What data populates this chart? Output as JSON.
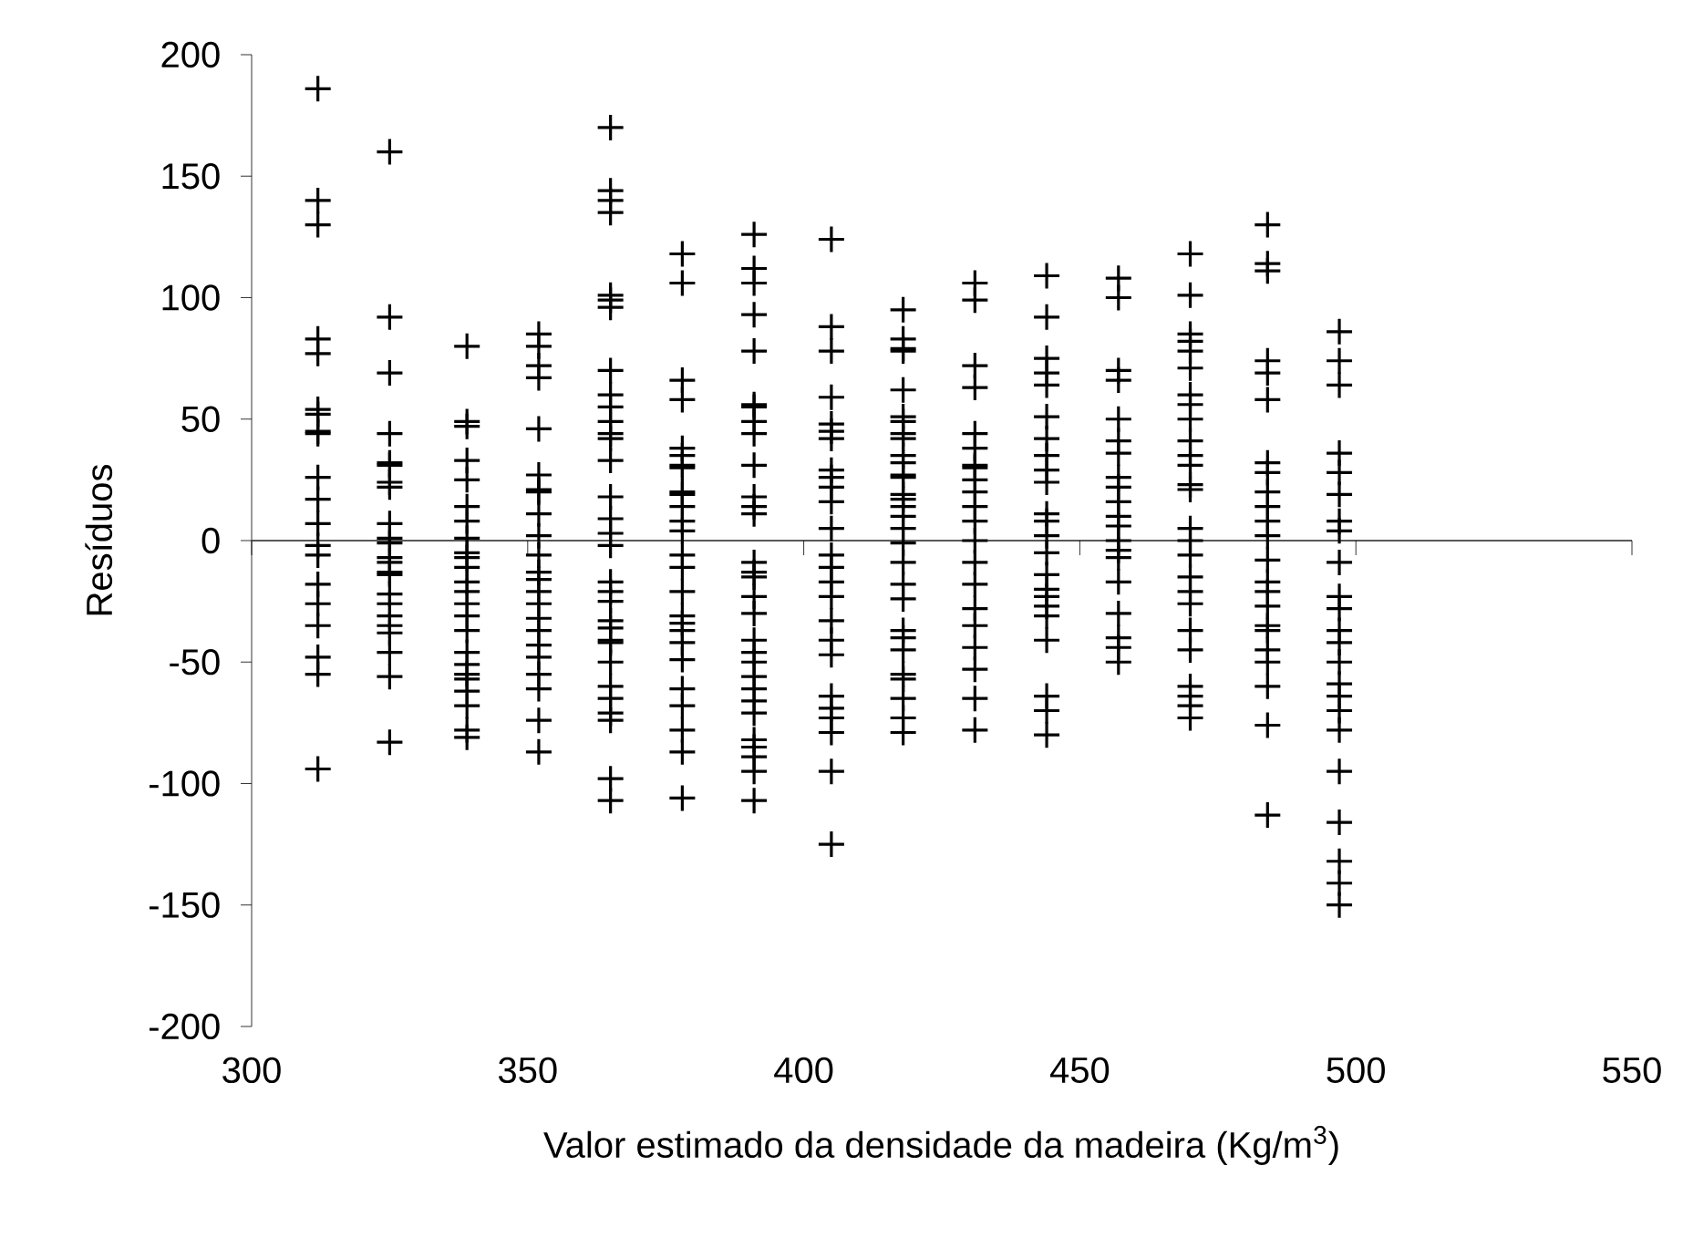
{
  "chart_data": {
    "type": "scatter",
    "xlabel": "Valor estimado da densidade da madeira (Kg/m$^{3}$)",
    "ylabel": "Resíduos",
    "xlim": [
      300,
      550
    ],
    "ylim": [
      -200,
      200
    ],
    "xticks": [
      300,
      350,
      400,
      450,
      500,
      550
    ],
    "yticks": [
      -200,
      -150,
      -100,
      -50,
      0,
      50,
      100,
      150,
      200
    ],
    "marker": "cross",
    "series": [
      {
        "color": "#000000",
        "x": [
          312,
          312,
          312,
          312,
          312,
          312,
          312,
          312,
          312,
          312,
          312,
          312,
          312,
          312,
          312,
          312,
          312,
          312,
          312,
          312,
          325,
          325,
          325,
          325,
          325,
          325,
          325,
          325,
          325,
          325,
          325,
          325,
          325,
          325,
          325,
          325,
          325,
          325,
          325,
          325,
          325,
          325,
          325,
          339,
          339,
          339,
          339,
          339,
          339,
          339,
          339,
          339,
          339,
          339,
          339,
          339,
          339,
          339,
          339,
          339,
          339,
          339,
          339,
          339,
          339,
          339,
          339,
          352,
          352,
          352,
          352,
          352,
          352,
          352,
          352,
          352,
          352,
          352,
          352,
          352,
          352,
          352,
          352,
          352,
          352,
          352,
          352,
          352,
          352,
          352,
          365,
          365,
          365,
          365,
          365,
          365,
          365,
          365,
          365,
          365,
          365,
          365,
          365,
          365,
          365,
          365,
          365,
          365,
          365,
          365,
          365,
          365,
          365,
          365,
          365,
          365,
          365,
          365,
          365,
          365,
          365,
          365,
          378,
          378,
          378,
          378,
          378,
          378,
          378,
          378,
          378,
          378,
          378,
          378,
          378,
          378,
          378,
          378,
          378,
          378,
          378,
          378,
          378,
          378,
          378,
          378,
          378,
          378,
          391,
          391,
          391,
          391,
          391,
          391,
          391,
          391,
          391,
          391,
          391,
          391,
          391,
          391,
          391,
          391,
          391,
          391,
          391,
          391,
          391,
          391,
          391,
          391,
          391,
          391,
          391,
          391,
          391,
          391,
          405,
          405,
          405,
          405,
          405,
          405,
          405,
          405,
          405,
          405,
          405,
          405,
          405,
          405,
          405,
          405,
          405,
          405,
          405,
          405,
          405,
          405,
          405,
          405,
          405,
          418,
          418,
          418,
          418,
          418,
          418,
          418,
          418,
          418,
          418,
          418,
          418,
          418,
          418,
          418,
          418,
          418,
          418,
          418,
          418,
          418,
          418,
          418,
          418,
          418,
          418,
          418,
          418,
          418,
          418,
          431,
          431,
          431,
          431,
          431,
          431,
          431,
          431,
          431,
          431,
          431,
          431,
          431,
          431,
          431,
          431,
          431,
          431,
          431,
          431,
          431,
          444,
          444,
          444,
          444,
          444,
          444,
          444,
          444,
          444,
          444,
          444,
          444,
          444,
          444,
          444,
          444,
          444,
          444,
          444,
          444,
          444,
          444,
          444,
          457,
          457,
          457,
          457,
          457,
          457,
          457,
          457,
          457,
          457,
          457,
          457,
          457,
          457,
          457,
          457,
          457,
          457,
          457,
          457,
          470,
          470,
          470,
          470,
          470,
          470,
          470,
          470,
          470,
          470,
          470,
          470,
          470,
          470,
          470,
          470,
          470,
          470,
          470,
          470,
          470,
          470,
          470,
          470,
          470,
          470,
          484,
          484,
          484,
          484,
          484,
          484,
          484,
          484,
          484,
          484,
          484,
          484,
          484,
          484,
          484,
          484,
          484,
          484,
          484,
          484,
          484,
          484,
          484,
          497,
          497,
          497,
          497,
          497,
          497,
          497,
          497,
          497,
          497,
          497,
          497,
          497,
          497,
          497,
          497,
          497,
          497,
          497,
          497,
          497,
          497,
          497
        ],
        "values": [
          186,
          140,
          130,
          83,
          77,
          54,
          52,
          45,
          44,
          26,
          17,
          7,
          -2,
          -6,
          -18,
          -26,
          -35,
          -48,
          -55,
          -94,
          160,
          92,
          69,
          44,
          32,
          31,
          24,
          22,
          7,
          1,
          -1,
          -7,
          -9,
          -13,
          -14,
          -22,
          -26,
          -31,
          -35,
          -38,
          -46,
          -56,
          -83,
          80,
          49,
          47,
          33,
          25,
          14,
          8,
          1,
          -5,
          -7,
          -11,
          -17,
          -21,
          -26,
          -31,
          -37,
          -46,
          -51,
          -55,
          -57,
          -62,
          -68,
          -78,
          -81,
          85,
          80,
          72,
          67,
          46,
          27,
          21,
          20,
          11,
          2,
          -6,
          -13,
          -16,
          -21,
          -26,
          -32,
          -37,
          -43,
          -48,
          -55,
          -61,
          -74,
          -87,
          170,
          144,
          140,
          135,
          101,
          99,
          96,
          70,
          60,
          55,
          49,
          44,
          42,
          33,
          18,
          9,
          3,
          -2,
          -17,
          -21,
          -25,
          -33,
          -36,
          -41,
          -42,
          -50,
          -60,
          -65,
          -71,
          -74,
          -98,
          -107,
          118,
          106,
          66,
          58,
          38,
          35,
          31,
          30,
          20,
          19,
          14,
          8,
          4,
          -6,
          -11,
          -21,
          -31,
          -34,
          -37,
          -42,
          -49,
          -61,
          -68,
          -78,
          -87,
          -106,
          126,
          112,
          106,
          93,
          78,
          56,
          55,
          49,
          44,
          31,
          18,
          14,
          11,
          -9,
          -13,
          -15,
          -23,
          -30,
          -41,
          -46,
          -50,
          -56,
          -61,
          -66,
          -71,
          -82,
          -85,
          -89,
          -95,
          -107,
          124,
          88,
          78,
          59,
          48,
          45,
          42,
          29,
          26,
          22,
          16,
          5,
          -6,
          -11,
          -17,
          -23,
          -33,
          -41,
          -47,
          -64,
          -69,
          -73,
          -79,
          -95,
          -125,
          95,
          83,
          79,
          78,
          62,
          51,
          49,
          44,
          42,
          35,
          32,
          27,
          26,
          19,
          17,
          14,
          10,
          5,
          -1,
          -9,
          -18,
          -24,
          -37,
          -40,
          -45,
          -55,
          -57,
          -65,
          -73,
          -79,
          106,
          99,
          72,
          63,
          44,
          38,
          31,
          30,
          25,
          20,
          14,
          8,
          0,
          -9,
          -18,
          -28,
          -35,
          -44,
          -53,
          -65,
          -78,
          109,
          92,
          75,
          69,
          64,
          51,
          42,
          35,
          29,
          24,
          11,
          8,
          2,
          -5,
          -14,
          -20,
          -23,
          -27,
          -31,
          -41,
          -64,
          -70,
          -80,
          108,
          100,
          70,
          66,
          50,
          41,
          36,
          26,
          22,
          16,
          10,
          6,
          0,
          -4,
          -7,
          -17,
          -30,
          -40,
          -44,
          -50,
          118,
          101,
          85,
          82,
          78,
          71,
          60,
          56,
          50,
          41,
          35,
          31,
          23,
          21,
          5,
          0,
          -6,
          -15,
          -21,
          -26,
          -37,
          -45,
          -60,
          -64,
          -68,
          -73,
          130,
          114,
          111,
          74,
          69,
          58,
          32,
          28,
          20,
          14,
          8,
          2,
          -8,
          -17,
          -21,
          -27,
          -35,
          -37,
          -45,
          -50,
          -60,
          -76,
          -113,
          86,
          74,
          64,
          36,
          28,
          19,
          8,
          4,
          -9,
          -23,
          -28,
          -37,
          -42,
          -50,
          -59,
          -64,
          -70,
          -78,
          -95,
          -116,
          -132,
          -141,
          -150
        ]
      }
    ]
  }
}
